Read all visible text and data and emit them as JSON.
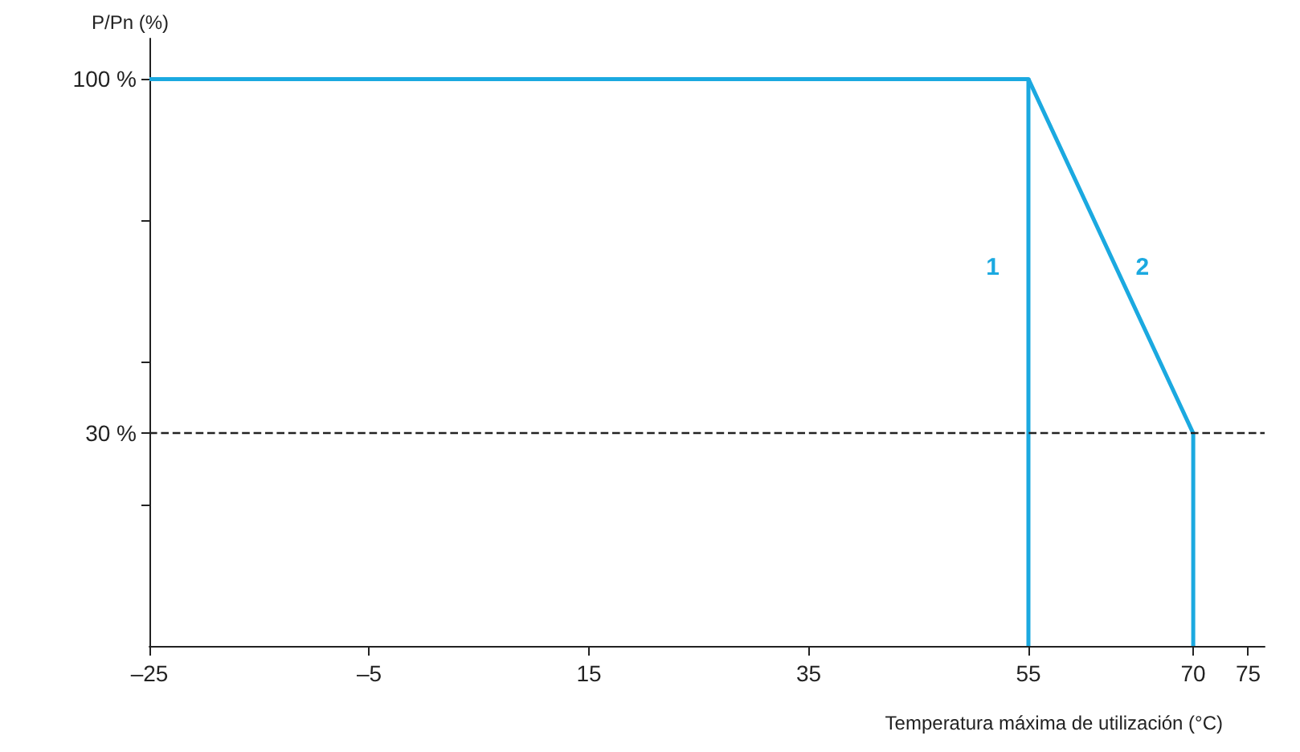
{
  "chart_data": {
    "type": "line",
    "xlabel": "Temperatura máxima de utilización (°C)",
    "ylabel": "P/Pn (%)",
    "series": [
      {
        "name": "1",
        "color": "#1ba9e0",
        "x": [
          -25,
          55,
          55
        ],
        "values": [
          100,
          100,
          -12
        ]
      },
      {
        "name": "2",
        "color": "#1ba9e0",
        "x": [
          55,
          70,
          70
        ],
        "values": [
          100,
          30,
          -12
        ]
      }
    ],
    "xlim": [
      -25,
      76.5
    ],
    "xticks": [
      {
        "value": -25,
        "label": "–25"
      },
      {
        "value": -5,
        "label": "–5"
      },
      15,
      35,
      55,
      70,
      75
    ],
    "ylim": [
      -12,
      108
    ],
    "yticks": [
      {
        "value": 16,
        "label": null
      },
      {
        "value": 30,
        "label": "30 %"
      },
      {
        "value": 44,
        "label": null
      },
      {
        "value": 72,
        "label": null
      },
      {
        "value": 100,
        "label": "100 %"
      }
    ],
    "ref_lines": [
      {
        "axis": "y",
        "value": 30,
        "color": "#222222",
        "line_style": "dashed"
      }
    ],
    "grid": false,
    "legend": false,
    "marker": "none",
    "line_style": "solid"
  }
}
